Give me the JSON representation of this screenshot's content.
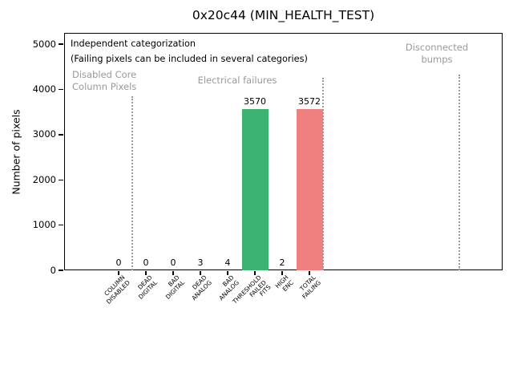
{
  "title": "0x20c44 (MIN_HEALTH_TEST)",
  "annotations": {
    "line1": "Independent categorization",
    "line2": "(Failing pixels can be included in several categories)",
    "region_disabled": "Disabled Core\nColumn Pixels",
    "region_electrical": "Electrical failures",
    "region_disconnected": "Disconnected\nbumps"
  },
  "colors": {
    "bar_green": "#3cb371",
    "bar_red": "#f08080",
    "gray_text": "#999999",
    "separator_gray": "#9a9a9a",
    "axis_black": "#000000"
  },
  "chart_data": {
    "type": "bar",
    "title": "0x20c44 (MIN_HEALTH_TEST)",
    "xlabel": "",
    "ylabel": "Number of pixels",
    "categories": [
      "COLUMN\nDISABLED",
      "DEAD\nDIGITAL",
      "BAD\nDIGITAL",
      "DEAD\nANALOG",
      "BAD\nANALOG",
      "THRESHOLD\nFAILED\nFITS",
      "HIGH\nENC",
      "TOTAL\nFAILING"
    ],
    "values": [
      0,
      0,
      0,
      3,
      4,
      3570,
      2,
      3572
    ],
    "value_labels": [
      "0",
      "0",
      "0",
      "3",
      "4",
      "3570",
      "2",
      "3572"
    ],
    "bar_colors": [
      "#3cb371",
      "#3cb371",
      "#3cb371",
      "#3cb371",
      "#3cb371",
      "#3cb371",
      "#3cb371",
      "#f08080"
    ],
    "ylim": [
      0,
      5250
    ],
    "yticks": [
      0,
      1000,
      2000,
      3000,
      4000,
      5000
    ],
    "grid": false,
    "legend": false,
    "region_separators_at_category": [
      0.5,
      7.5,
      12.5
    ],
    "regions": [
      {
        "label": "Disabled Core\nColumn Pixels",
        "span_categories": [
          -2.0,
          0.5
        ]
      },
      {
        "label": "Electrical failures",
        "span_categories": [
          0.5,
          7.5
        ]
      },
      {
        "label": "Disconnected\nbumps",
        "span_categories": [
          7.5,
          14.1
        ]
      }
    ]
  }
}
